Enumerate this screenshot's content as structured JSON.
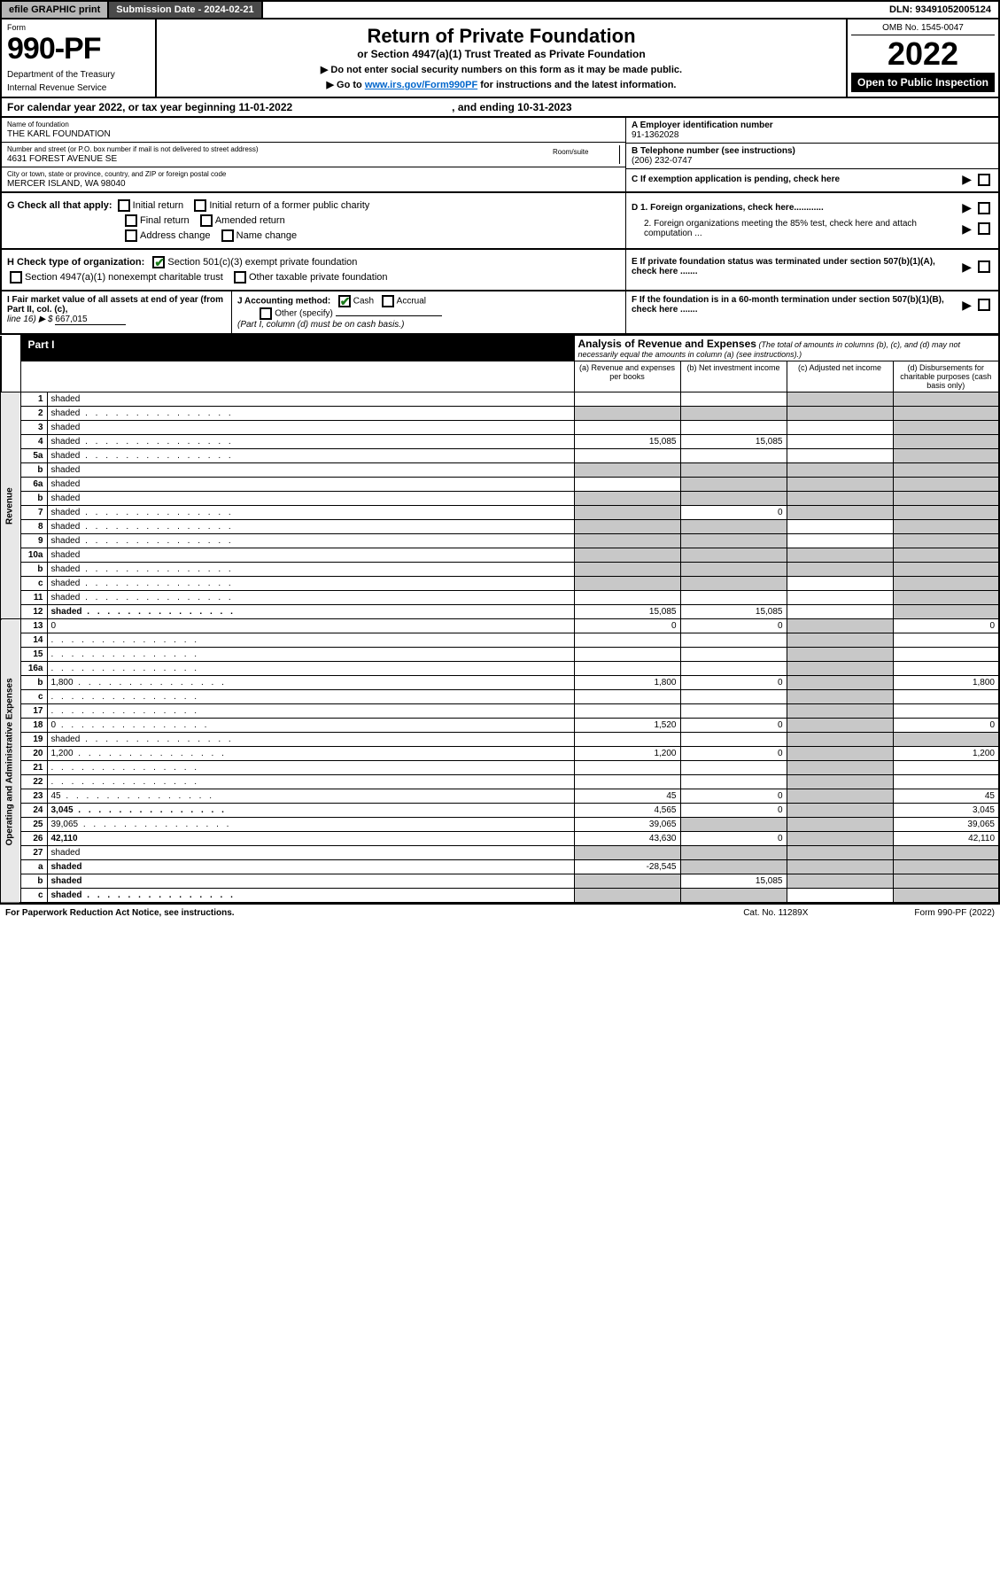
{
  "topbar": {
    "efile": "efile GRAPHIC print",
    "subdate_lbl": "Submission Date - 2024-02-21",
    "dln": "DLN: 93491052005124"
  },
  "header": {
    "form_word": "Form",
    "form_no": "990-PF",
    "dept1": "Department of the Treasury",
    "dept2": "Internal Revenue Service",
    "title": "Return of Private Foundation",
    "subtitle": "or Section 4947(a)(1) Trust Treated as Private Foundation",
    "instr1": "▶ Do not enter social security numbers on this form as it may be made public.",
    "instr2_pre": "▶ Go to ",
    "instr2_link": "www.irs.gov/Form990PF",
    "instr2_post": " for instructions and the latest information.",
    "omb": "OMB No. 1545-0047",
    "year": "2022",
    "open": "Open to Public Inspection"
  },
  "calendar": {
    "text": "For calendar year 2022, or tax year beginning 11-01-2022",
    "ending": ", and ending 10-31-2023"
  },
  "info": {
    "name_lbl": "Name of foundation",
    "name_val": "THE KARL FOUNDATION",
    "addr_lbl": "Number and street (or P.O. box number if mail is not delivered to street address)",
    "addr_val": "4631 FOREST AVENUE SE",
    "city_lbl": "City or town, state or province, country, and ZIP or foreign postal code",
    "city_val": "MERCER ISLAND, WA  98040",
    "room_lbl": "Room/suite",
    "ein_lbl": "A Employer identification number",
    "ein_val": "91-1362028",
    "phone_lbl": "B Telephone number (see instructions)",
    "phone_val": "(206) 232-0747",
    "pending_lbl": "C If exemption application is pending, check here"
  },
  "checks": {
    "g_lbl": "G Check all that apply:",
    "initial": "Initial return",
    "initial_former": "Initial return of a former public charity",
    "final": "Final return",
    "amended": "Amended return",
    "address": "Address change",
    "name_change": "Name change",
    "h_lbl": "H Check type of organization:",
    "h_501c3": "Section 501(c)(3) exempt private foundation",
    "h_4947": "Section 4947(a)(1) nonexempt charitable trust",
    "h_other": "Other taxable private foundation",
    "d1": "D 1. Foreign organizations, check here............",
    "d2": "2. Foreign organizations meeting the 85% test, check here and attach computation ...",
    "e": "E  If private foundation status was terminated under section 507(b)(1)(A), check here .......",
    "f": "F  If the foundation is in a 60-month termination under section 507(b)(1)(B), check here ......."
  },
  "fmv": {
    "i_lbl": "I Fair market value of all assets at end of year (from Part II, col. (c),",
    "i_line16": "line 16) ▶ $",
    "i_val": "667,015",
    "j_lbl": "J Accounting method:",
    "j_cash": "Cash",
    "j_accrual": "Accrual",
    "j_other": "Other (specify)",
    "j_note": "(Part I, column (d) must be on cash basis.)"
  },
  "part1": {
    "label": "Part I",
    "title": "Analysis of Revenue and Expenses",
    "note": "(The total of amounts in columns (b), (c), and (d) may not necessarily equal the amounts in column (a) (see instructions).)",
    "col_a": "(a)   Revenue and expenses per books",
    "col_b": "(b)   Net investment income",
    "col_c": "(c)   Adjusted net income",
    "col_d": "(d)  Disbursements for charitable purposes (cash basis only)"
  },
  "side_labels": {
    "revenue": "Revenue",
    "expenses": "Operating and Administrative Expenses"
  },
  "rows": [
    {
      "n": "1",
      "d": "shaded",
      "a": "",
      "b": "",
      "c": "shaded"
    },
    {
      "n": "2",
      "d": "shaded",
      "dots": true,
      "a": "shaded",
      "b": "shaded",
      "c": "shaded"
    },
    {
      "n": "3",
      "d": "shaded",
      "a": "",
      "b": "",
      "c": ""
    },
    {
      "n": "4",
      "d": "shaded",
      "dots": true,
      "a": "15,085",
      "b": "15,085",
      "c": ""
    },
    {
      "n": "5a",
      "d": "shaded",
      "dots": true,
      "a": "",
      "b": "",
      "c": ""
    },
    {
      "n": "b",
      "d": "shaded",
      "a": "shaded",
      "b": "shaded",
      "c": "shaded"
    },
    {
      "n": "6a",
      "d": "shaded",
      "a": "",
      "b": "shaded",
      "c": "shaded"
    },
    {
      "n": "b",
      "d": "shaded",
      "a": "shaded",
      "b": "shaded",
      "c": "shaded"
    },
    {
      "n": "7",
      "d": "shaded",
      "dots": true,
      "a": "shaded",
      "b": "0",
      "c": "shaded"
    },
    {
      "n": "8",
      "d": "shaded",
      "dots": true,
      "a": "shaded",
      "b": "shaded",
      "c": ""
    },
    {
      "n": "9",
      "d": "shaded",
      "dots": true,
      "a": "shaded",
      "b": "shaded",
      "c": ""
    },
    {
      "n": "10a",
      "d": "shaded",
      "a": "shaded",
      "b": "shaded",
      "c": "shaded"
    },
    {
      "n": "b",
      "d": "shaded",
      "dots": true,
      "a": "shaded",
      "b": "shaded",
      "c": "shaded"
    },
    {
      "n": "c",
      "d": "shaded",
      "dots": true,
      "a": "shaded",
      "b": "shaded",
      "c": ""
    },
    {
      "n": "11",
      "d": "shaded",
      "dots": true,
      "a": "",
      "b": "",
      "c": ""
    },
    {
      "n": "12",
      "d": "shaded",
      "dots": true,
      "bold": true,
      "a": "15,085",
      "b": "15,085",
      "c": ""
    },
    {
      "n": "13",
      "d": "0",
      "a": "0",
      "b": "0",
      "c": "shaded"
    },
    {
      "n": "14",
      "d": "",
      "dots": true,
      "a": "",
      "b": "",
      "c": "shaded"
    },
    {
      "n": "15",
      "d": "",
      "dots": true,
      "a": "",
      "b": "",
      "c": "shaded"
    },
    {
      "n": "16a",
      "d": "",
      "dots": true,
      "a": "",
      "b": "",
      "c": "shaded"
    },
    {
      "n": "b",
      "d": "1,800",
      "dots": true,
      "a": "1,800",
      "b": "0",
      "c": "shaded"
    },
    {
      "n": "c",
      "d": "",
      "dots": true,
      "a": "",
      "b": "",
      "c": "shaded"
    },
    {
      "n": "17",
      "d": "",
      "dots": true,
      "a": "",
      "b": "",
      "c": "shaded"
    },
    {
      "n": "18",
      "d": "0",
      "dots": true,
      "a": "1,520",
      "b": "0",
      "c": "shaded"
    },
    {
      "n": "19",
      "d": "shaded",
      "dots": true,
      "a": "",
      "b": "",
      "c": "shaded"
    },
    {
      "n": "20",
      "d": "1,200",
      "dots": true,
      "a": "1,200",
      "b": "0",
      "c": "shaded"
    },
    {
      "n": "21",
      "d": "",
      "dots": true,
      "a": "",
      "b": "",
      "c": "shaded"
    },
    {
      "n": "22",
      "d": "",
      "dots": true,
      "a": "",
      "b": "",
      "c": "shaded"
    },
    {
      "n": "23",
      "d": "45",
      "dots": true,
      "a": "45",
      "b": "0",
      "c": "shaded"
    },
    {
      "n": "24",
      "d": "3,045",
      "dots": true,
      "bold": true,
      "a": "4,565",
      "b": "0",
      "c": "shaded"
    },
    {
      "n": "25",
      "d": "39,065",
      "dots": true,
      "a": "39,065",
      "b": "shaded",
      "c": "shaded"
    },
    {
      "n": "26",
      "d": "42,110",
      "bold": true,
      "a": "43,630",
      "b": "0",
      "c": "shaded"
    },
    {
      "n": "27",
      "d": "shaded",
      "a": "shaded",
      "b": "shaded",
      "c": "shaded"
    },
    {
      "n": "a",
      "d": "shaded",
      "bold": true,
      "a": "-28,545",
      "b": "shaded",
      "c": "shaded"
    },
    {
      "n": "b",
      "d": "shaded",
      "bold": true,
      "a": "shaded",
      "b": "15,085",
      "c": "shaded"
    },
    {
      "n": "c",
      "d": "shaded",
      "dots": true,
      "bold": true,
      "a": "shaded",
      "b": "shaded",
      "c": ""
    }
  ],
  "footer": {
    "left": "For Paperwork Reduction Act Notice, see instructions.",
    "mid": "Cat. No. 11289X",
    "right": "Form 990-PF (2022)"
  }
}
